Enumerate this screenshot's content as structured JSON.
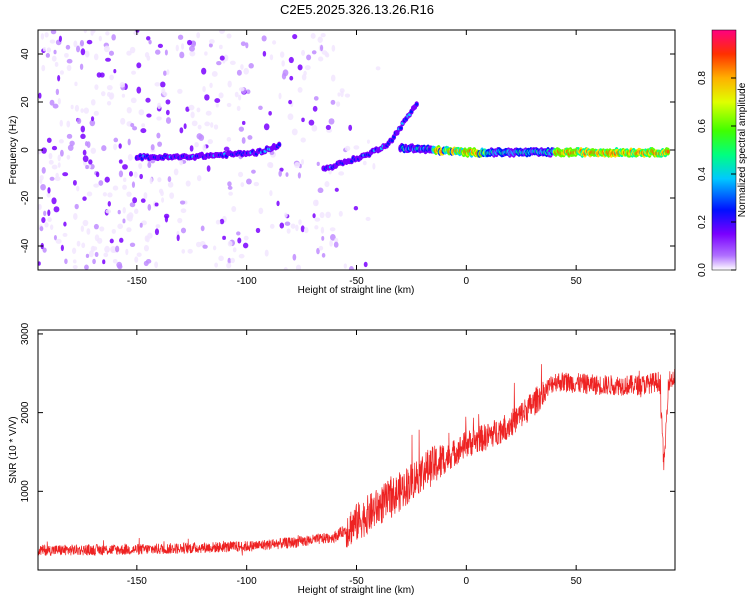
{
  "title": "C2E5.2025.326.13.26.R16",
  "chart_data": [
    {
      "type": "heatmap",
      "xlabel": "Height of straight line (km)",
      "ylabel": "Frequency (Hz)",
      "xlim": [
        -195,
        95
      ],
      "ylim": [
        -50,
        50
      ],
      "xticks": [
        -150,
        -100,
        -50,
        0,
        50
      ],
      "yticks": [
        -40,
        -20,
        0,
        20,
        40
      ],
      "colorbar": {
        "label": "Normalized spectral amplitude",
        "range": [
          0.0,
          1.0
        ],
        "ticks": [
          0.0,
          0.2,
          0.4,
          0.6,
          0.8
        ]
      },
      "features": [
        {
          "name": "lower trace",
          "x": [
            -150,
            -130,
            -110,
            -95,
            -85
          ],
          "y": [
            -3,
            -3,
            -2,
            -1,
            2
          ]
        },
        {
          "name": "rising trace",
          "x": [
            -65,
            -55,
            -45,
            -35,
            -28,
            -22
          ],
          "y": [
            -8,
            -5,
            -2,
            3,
            12,
            20
          ]
        },
        {
          "name": "main line",
          "x": [
            -30,
            0,
            50,
            92
          ],
          "y": [
            1,
            -1,
            -1,
            -1
          ],
          "peak_amplitude": 1.0
        }
      ]
    },
    {
      "type": "line",
      "xlabel": "Height of straight line (km)",
      "ylabel": "SNR (10 * V/V)",
      "xlim": [
        -195,
        95
      ],
      "ylim": [
        0,
        3050
      ],
      "xticks": [
        -150,
        -100,
        -50,
        0,
        50
      ],
      "yticks": [
        1000,
        2000,
        3000
      ],
      "color": "#ee2222",
      "series": [
        {
          "name": "SNR",
          "x": [
            -195,
            -150,
            -100,
            -75,
            -60,
            -50,
            -40,
            -30,
            -20,
            -10,
            0,
            10,
            20,
            30,
            40,
            60,
            80,
            88,
            90,
            92,
            95
          ],
          "values": [
            250,
            260,
            300,
            360,
            420,
            600,
            800,
            1000,
            1250,
            1400,
            1600,
            1700,
            1850,
            2100,
            2400,
            2350,
            2350,
            2400,
            1300,
            2400,
            2450
          ]
        }
      ]
    }
  ]
}
